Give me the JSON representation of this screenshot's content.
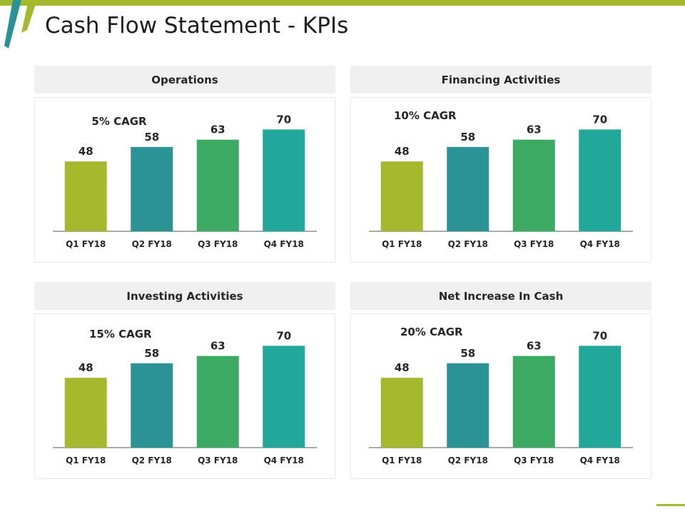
{
  "title": "Cash Flow Statement - KPIs",
  "colors": {
    "accent_green": "#a5b92f",
    "accent_teal": "#2b9396",
    "bar_colors": [
      "#a5b92f",
      "#2b9396",
      "#3daa63",
      "#22a89a"
    ]
  },
  "chart_data": [
    {
      "type": "bar",
      "title": "Operations",
      "annotation": "5% CAGR",
      "categories": [
        "Q1 FY18",
        "Q2 FY18",
        "Q3 FY18",
        "Q4 FY18"
      ],
      "values": [
        48,
        58,
        63,
        70
      ],
      "ylim": [
        0,
        80
      ],
      "grid": false
    },
    {
      "type": "bar",
      "title": "Financing Activities",
      "annotation": "10% CAGR",
      "categories": [
        "Q1 FY18",
        "Q2 FY18",
        "Q3 FY18",
        "Q4 FY18"
      ],
      "values": [
        48,
        58,
        63,
        70
      ],
      "ylim": [
        0,
        80
      ],
      "grid": false
    },
    {
      "type": "bar",
      "title": "Investing Activities",
      "annotation": "15% CAGR",
      "categories": [
        "Q1 FY18",
        "Q2 FY18",
        "Q3 FY18",
        "Q4 FY18"
      ],
      "values": [
        48,
        58,
        63,
        70
      ],
      "ylim": [
        0,
        80
      ],
      "grid": false
    },
    {
      "type": "bar",
      "title": "Net Increase In Cash",
      "annotation": "20% CAGR",
      "categories": [
        "Q1 FY18",
        "Q2 FY18",
        "Q3 FY18",
        "Q4 FY18"
      ],
      "values": [
        48,
        58,
        63,
        70
      ],
      "ylim": [
        0,
        80
      ],
      "grid": false
    }
  ]
}
